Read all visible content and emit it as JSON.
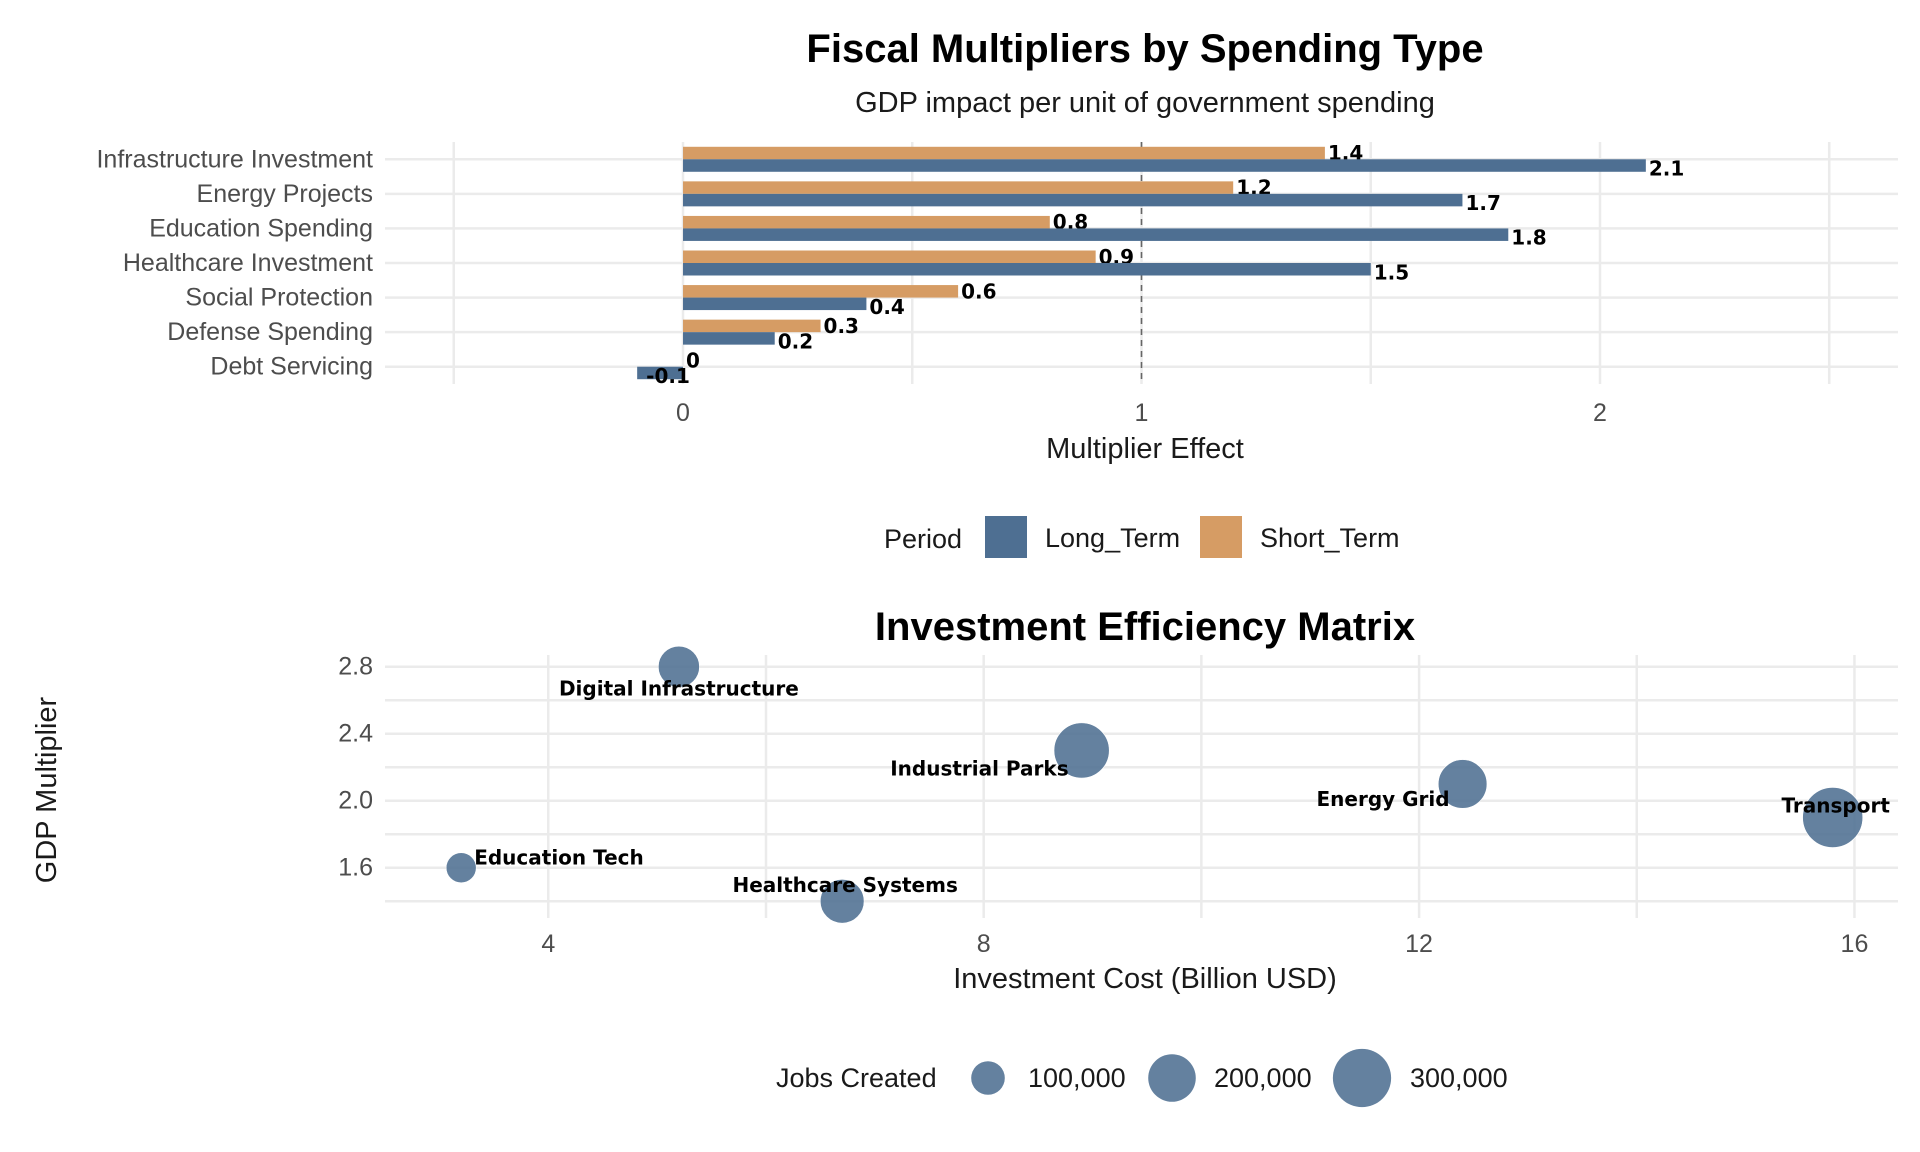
{
  "chart_data": [
    {
      "type": "bar",
      "orientation": "horizontal",
      "title": "Fiscal Multipliers by Spending Type",
      "subtitle": "GDP impact per unit of government spending",
      "xlabel": "Multiplier Effect",
      "ylabel": "",
      "xlim": [
        -0.65,
        2.65
      ],
      "xticks": [
        0,
        1,
        2
      ],
      "reference_line": 1,
      "grid": true,
      "legend_position": "bottom",
      "legend_title": "Period",
      "categories": [
        "Infrastructure Investment",
        "Energy Projects",
        "Education Spending",
        "Healthcare Investment",
        "Social Protection",
        "Defense Spending",
        "Debt Servicing"
      ],
      "series": [
        {
          "name": "Long_Term",
          "color": "#4e6f92",
          "values": [
            2.1,
            1.7,
            1.8,
            1.5,
            0.4,
            0.2,
            -0.1
          ],
          "labels": [
            "2.1",
            "1.7",
            "1.8",
            "1.5",
            "0.4",
            "0.2",
            "-0.1"
          ]
        },
        {
          "name": "Short_Term",
          "color": "#d69c64",
          "values": [
            1.4,
            1.2,
            0.8,
            0.9,
            0.6,
            0.3,
            0
          ],
          "labels": [
            "1.4",
            "1.2",
            "0.8",
            "0.9",
            "0.6",
            "0.3",
            "0"
          ]
        }
      ]
    },
    {
      "type": "scatter",
      "title": "Investment Efficiency Matrix",
      "xlabel": "Investment Cost (Billion USD)",
      "ylabel": "GDP Multiplier",
      "xlim": [
        2.5,
        16.4
      ],
      "ylim": [
        1.3,
        2.87
      ],
      "xticks": [
        4,
        8,
        12,
        16
      ],
      "yticks": [
        1.6,
        2.0,
        2.4,
        2.8
      ],
      "ytick_labels": [
        "1.6",
        "2.0",
        "2.4",
        "2.8"
      ],
      "grid": true,
      "legend_position": "bottom",
      "legend_title": "Jobs Created",
      "point_color": "#4e6f92",
      "size_legend": [
        {
          "value": 100000,
          "label": "100,000"
        },
        {
          "value": 200000,
          "label": "200,000"
        },
        {
          "value": 300000,
          "label": "300,000"
        }
      ],
      "points": [
        {
          "label": "Digital Infrastructure",
          "x": 5.2,
          "y": 2.8,
          "jobs": 150000
        },
        {
          "label": "Industrial Parks",
          "x": 8.9,
          "y": 2.3,
          "jobs": 270000
        },
        {
          "label": "Energy Grid",
          "x": 12.4,
          "y": 2.1,
          "jobs": 210000
        },
        {
          "label": "Transport",
          "x": 15.8,
          "y": 1.9,
          "jobs": 320000
        },
        {
          "label": "Education Tech",
          "x": 3.2,
          "y": 1.6,
          "jobs": 80000
        },
        {
          "label": "Healthcare Systems",
          "x": 6.7,
          "y": 1.4,
          "jobs": 170000
        }
      ]
    }
  ]
}
